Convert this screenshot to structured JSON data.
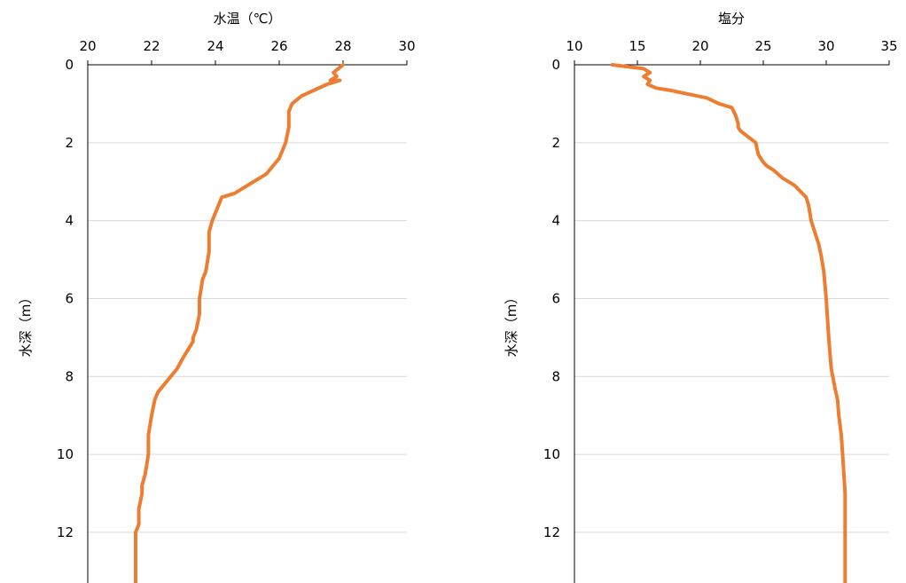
{
  "chart_data": [
    {
      "type": "line",
      "title": "",
      "xlabel": "水温（℃）",
      "ylabel": "水深（m）",
      "xlim": [
        20,
        30
      ],
      "ylim": [
        0,
        13.3
      ],
      "y_inverted": true,
      "x_axis_position": "top",
      "x_ticks": [
        "20",
        "22",
        "24",
        "26",
        "28",
        "30"
      ],
      "y_ticks": [
        "0",
        "2",
        "4",
        "6",
        "8",
        "10",
        "12"
      ],
      "grid": "horizontal",
      "line_color": "#ED7D31",
      "series": [
        {
          "x": [
            28.0,
            27.7,
            27.8,
            27.6,
            27.9,
            27.5,
            26.7,
            26.4,
            26.3,
            26.3,
            26.2,
            26.0,
            25.6,
            25.4,
            25.0,
            24.6,
            24.2,
            24.0,
            23.9,
            23.8,
            23.8,
            23.7,
            23.6,
            23.5,
            23.5,
            23.4,
            23.3,
            23.3,
            23.0,
            22.8,
            22.5,
            22.2,
            22.1,
            22.0,
            21.9,
            21.9,
            21.8,
            21.7,
            21.7,
            21.6,
            21.6,
            21.6,
            21.5,
            21.5,
            21.5
          ],
          "y": [
            0.0,
            0.2,
            0.3,
            0.4,
            0.4,
            0.5,
            0.8,
            1.0,
            1.2,
            1.6,
            2.0,
            2.4,
            2.8,
            2.9,
            3.1,
            3.3,
            3.4,
            3.8,
            4.0,
            4.3,
            4.8,
            5.3,
            5.5,
            6.0,
            6.4,
            6.8,
            7.0,
            7.1,
            7.5,
            7.8,
            8.1,
            8.4,
            8.6,
            9.0,
            9.5,
            10.0,
            10.5,
            10.8,
            11.0,
            11.4,
            11.6,
            11.8,
            12.0,
            12.5,
            13.3
          ]
        }
      ]
    },
    {
      "type": "line",
      "title": "",
      "xlabel": "塩分",
      "ylabel": "水深（m）",
      "xlim": [
        10,
        35
      ],
      "ylim": [
        0,
        13.3
      ],
      "y_inverted": true,
      "x_axis_position": "top",
      "x_ticks": [
        "10",
        "15",
        "20",
        "25",
        "30",
        "35"
      ],
      "y_ticks": [
        "0",
        "2",
        "4",
        "6",
        "8",
        "10",
        "12"
      ],
      "grid": "horizontal",
      "line_color": "#ED7D31",
      "series": [
        {
          "x": [
            13.0,
            15.5,
            16.0,
            15.5,
            16.0,
            15.8,
            16.5,
            17.5,
            19.0,
            20.5,
            21.5,
            22.5,
            22.8,
            23.0,
            23.0,
            23.2,
            23.6,
            24.0,
            24.4,
            24.6,
            25.0,
            25.3,
            25.8,
            26.5,
            27.5,
            28.4,
            28.6,
            28.8,
            29.1,
            29.4,
            29.6,
            29.8,
            30.0,
            30.2,
            30.4,
            30.7,
            30.9,
            31.0,
            31.2,
            31.3,
            31.4,
            31.5,
            31.5,
            31.5,
            31.5,
            31.5
          ],
          "y": [
            0.0,
            0.1,
            0.2,
            0.3,
            0.4,
            0.5,
            0.6,
            0.65,
            0.75,
            0.85,
            1.0,
            1.1,
            1.3,
            1.5,
            1.6,
            1.7,
            1.8,
            1.9,
            2.0,
            2.3,
            2.5,
            2.6,
            2.7,
            2.9,
            3.1,
            3.4,
            3.6,
            4.0,
            4.3,
            4.6,
            4.9,
            5.3,
            6.0,
            7.0,
            7.8,
            8.3,
            8.6,
            9.0,
            9.5,
            10.0,
            10.5,
            11.0,
            11.5,
            12.0,
            12.5,
            13.3
          ]
        }
      ]
    }
  ]
}
